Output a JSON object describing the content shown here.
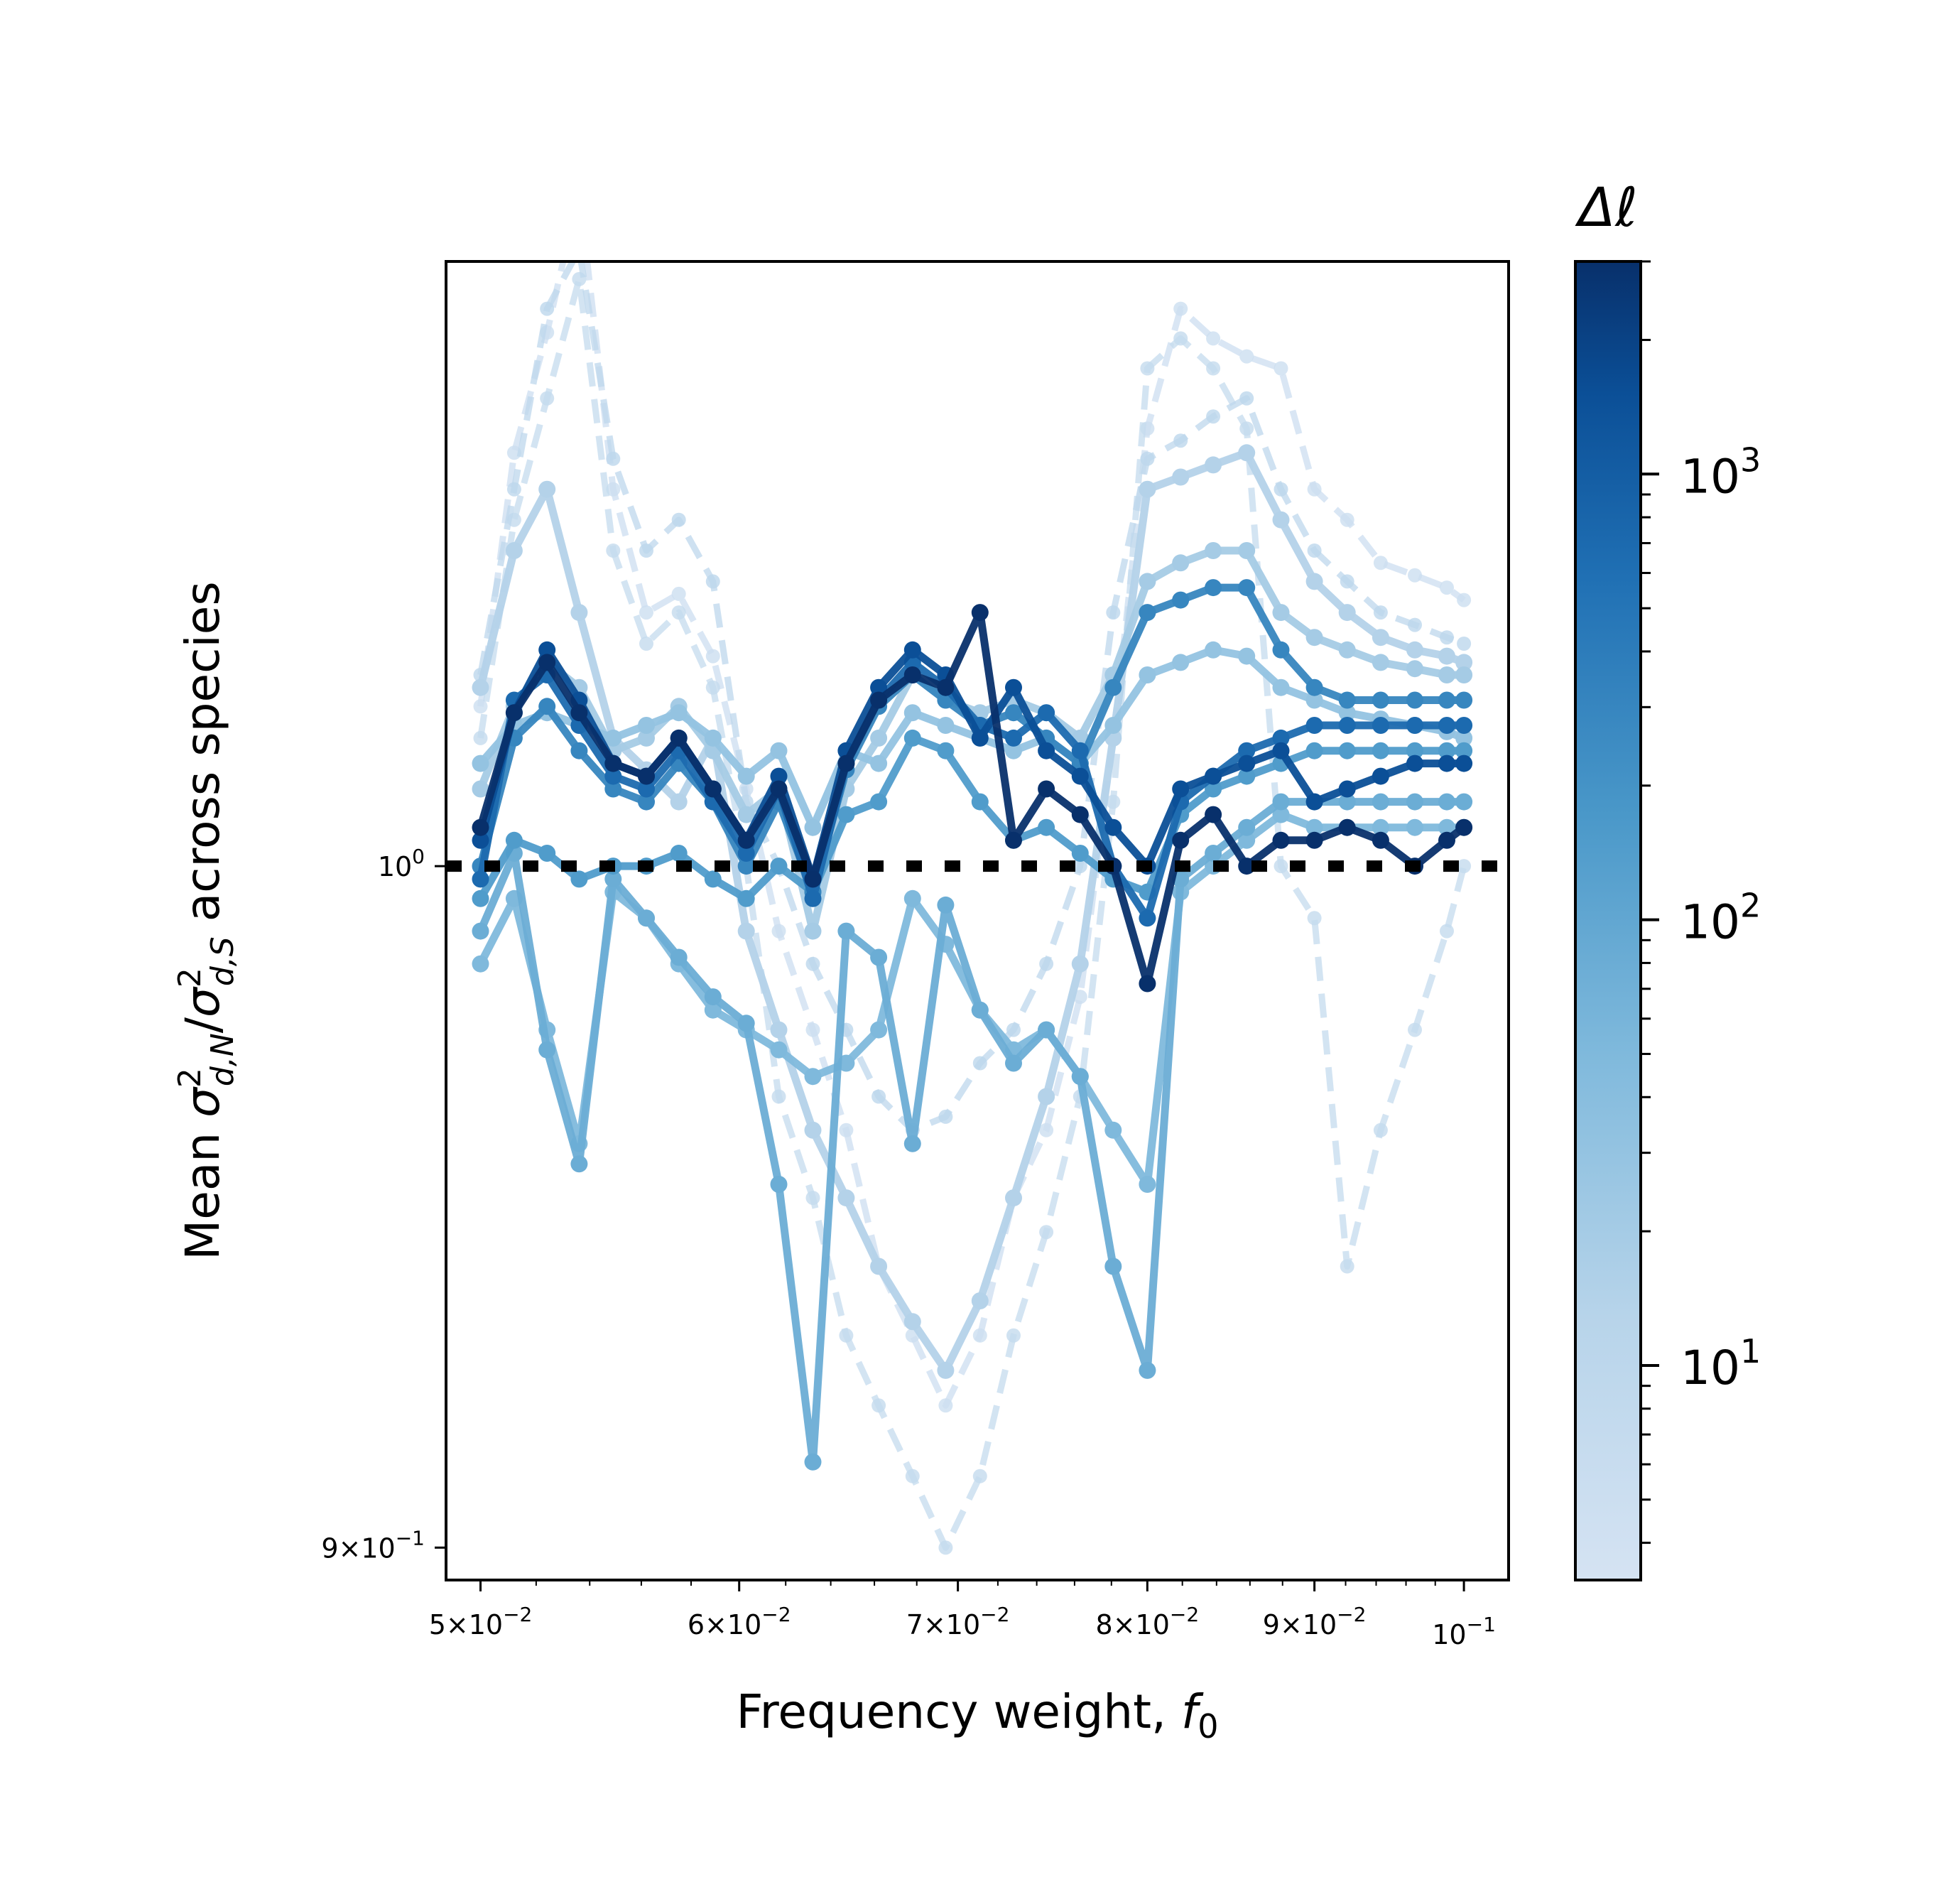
{
  "chart_data": {
    "type": "line",
    "title": "",
    "xlabel": "Frequency weight, ",
    "xlabel_math": "f",
    "xlabel_sub": "0",
    "ylabel_prefix": "Mean ",
    "ylabel_math": "σ",
    "ylabel_sup": "2",
    "ylabel_sub_n": "d,N",
    "ylabel_sub_s": "d,S",
    "ylabel_suffix": " across species",
    "xscale": "log",
    "yscale": "log",
    "xlim": [
      0.0488,
      0.1032
    ],
    "ylim": [
      0.8955,
      1.098
    ],
    "xticks": [
      {
        "value": 0.05,
        "base": "5",
        "exp": "−2"
      },
      {
        "value": 0.06,
        "base": "6",
        "exp": "−2"
      },
      {
        "value": 0.07,
        "base": "7",
        "exp": "−2"
      },
      {
        "value": 0.08,
        "base": "8",
        "exp": "−2"
      },
      {
        "value": 0.09,
        "base": "9",
        "exp": "−2"
      },
      {
        "value": 0.1,
        "base": "",
        "exp": "−1"
      }
    ],
    "yticks": [
      {
        "value": 1.0,
        "base": "",
        "exp": "0"
      },
      {
        "value": 0.9,
        "base": "9",
        "exp": "−1"
      }
    ],
    "reference_line": {
      "y": 1.0,
      "style": "dotted",
      "color": "#000000"
    },
    "x": [
      0.05,
      0.0512,
      0.0524,
      0.0536,
      0.0549,
      0.0562,
      0.0575,
      0.0589,
      0.0603,
      0.0617,
      0.0632,
      0.0647,
      0.0662,
      0.0678,
      0.0694,
      0.0711,
      0.0728,
      0.0745,
      0.0763,
      0.0781,
      0.08,
      0.0819,
      0.0838,
      0.0858,
      0.0879,
      0.09,
      0.0921,
      0.0943,
      0.0966,
      0.0988,
      0.1
    ],
    "series": [
      {
        "dl": 5,
        "y": [
          1.025,
          1.066,
          1.086,
          1.11,
          1.06,
          1.04,
          1.043,
          1.033,
          1.012,
          0.99,
          0.975,
          0.96,
          0.94,
          0.93,
          0.92,
          0.93,
          0.95,
          0.96,
          0.98,
          1.02,
          1.07,
          1.09,
          1.085,
          1.082,
          1.08,
          1.06,
          1.055,
          1.048,
          1.046,
          1.044,
          1.042
        ]
      },
      {
        "dl": 7,
        "y": [
          1.02,
          1.055,
          1.075,
          1.095,
          1.05,
          1.035,
          1.04,
          1.028,
          1.0,
          0.965,
          0.95,
          0.93,
          0.92,
          0.91,
          0.9,
          0.91,
          0.93,
          0.945,
          0.965,
          1.01,
          1.08,
          1.085,
          1.08,
          1.07,
          1.0,
          0.992,
          0.94,
          0.96,
          0.975,
          0.99,
          1.0
        ]
      },
      {
        "dl": 10,
        "y": [
          1.03,
          1.06,
          1.09,
          1.1,
          1.065,
          1.05,
          1.055,
          1.045,
          1.01,
          1.0,
          0.985,
          0.975,
          0.965,
          0.96,
          0.962,
          0.97,
          0.975,
          0.985,
          1.0,
          1.04,
          1.065,
          1.068,
          1.072,
          1.075,
          1.06,
          1.05,
          1.045,
          1.04,
          1.038,
          1.036,
          1.035
        ]
      },
      {
        "dl": 14,
        "y": [
          1.028,
          1.05,
          1.06,
          1.04,
          1.02,
          1.015,
          1.01,
          1.02,
          0.99,
          0.975,
          0.96,
          0.95,
          0.94,
          0.932,
          0.925,
          0.935,
          0.95,
          0.965,
          0.985,
          1.02,
          1.06,
          1.062,
          1.064,
          1.066,
          1.055,
          1.045,
          1.04,
          1.036,
          1.034,
          1.033,
          1.032
        ]
      },
      {
        "dl": 20,
        "y": [
          1.012,
          1.025,
          1.032,
          1.028,
          1.018,
          1.02,
          1.025,
          1.018,
          1.008,
          1.012,
          0.99,
          1.012,
          1.02,
          1.03,
          1.026,
          1.024,
          1.026,
          1.024,
          1.02,
          1.03,
          1.045,
          1.048,
          1.05,
          1.05,
          1.04,
          1.036,
          1.034,
          1.032,
          1.031,
          1.03,
          1.03
        ]
      },
      {
        "dl": 30,
        "y": [
          1.016,
          1.022,
          1.024,
          1.022,
          1.02,
          1.022,
          1.024,
          1.02,
          1.014,
          1.018,
          1.006,
          1.018,
          1.016,
          1.024,
          1.022,
          1.02,
          1.018,
          1.02,
          1.016,
          1.022,
          1.03,
          1.032,
          1.034,
          1.033,
          1.028,
          1.026,
          1.024,
          1.023,
          1.022,
          1.021,
          1.02
        ]
      },
      {
        "dl": 50,
        "y": [
          0.985,
          0.995,
          0.975,
          0.958,
          0.996,
          0.992,
          0.985,
          0.978,
          0.975,
          0.972,
          0.968,
          0.97,
          0.975,
          0.995,
          0.988,
          0.978,
          0.972,
          0.975,
          0.968,
          0.96,
          0.952,
          0.996,
          1.0,
          1.004,
          1.008,
          1.006,
          1.006,
          1.006,
          1.006,
          1.006,
          1.006
        ]
      },
      {
        "dl": 80,
        "y": [
          0.99,
          1.002,
          0.972,
          0.955,
          0.998,
          0.992,
          0.986,
          0.98,
          0.976,
          0.952,
          0.912,
          0.99,
          0.986,
          0.958,
          0.994,
          0.978,
          0.97,
          0.975,
          0.968,
          0.94,
          0.925,
          0.998,
          1.002,
          1.006,
          1.01,
          1.01,
          1.01,
          1.01,
          1.01,
          1.01,
          1.01
        ]
      },
      {
        "dl": 150,
        "y": [
          0.995,
          1.004,
          1.002,
          0.998,
          1.0,
          1.0,
          1.002,
          0.998,
          0.995,
          1.0,
          0.996,
          1.008,
          1.01,
          1.02,
          1.018,
          1.01,
          1.004,
          1.006,
          1.002,
          0.998,
          0.996,
          1.008,
          1.012,
          1.014,
          1.016,
          1.018,
          1.018,
          1.018,
          1.018,
          1.018,
          1.018
        ]
      },
      {
        "dl": 300,
        "y": [
          1.0,
          1.02,
          1.025,
          1.018,
          1.012,
          1.01,
          1.016,
          1.01,
          1.0,
          1.01,
          0.996,
          1.015,
          1.025,
          1.03,
          1.026,
          1.022,
          1.024,
          1.02,
          1.016,
          1.028,
          1.04,
          1.042,
          1.044,
          1.044,
          1.034,
          1.028,
          1.026,
          1.026,
          1.026,
          1.026,
          1.026
        ]
      },
      {
        "dl": 700,
        "y": [
          0.998,
          1.026,
          1.03,
          1.022,
          1.014,
          1.012,
          1.018,
          1.01,
          1.002,
          1.012,
          0.995,
          1.016,
          1.026,
          1.032,
          1.028,
          1.022,
          1.02,
          1.024,
          1.018,
          1.0,
          0.992,
          1.01,
          1.014,
          1.018,
          1.02,
          1.022,
          1.022,
          1.022,
          1.022,
          1.022,
          1.022
        ]
      },
      {
        "dl": 1500,
        "y": [
          1.004,
          1.024,
          1.034,
          1.026,
          1.016,
          1.014,
          1.02,
          1.012,
          1.004,
          1.014,
          0.998,
          1.018,
          1.028,
          1.034,
          1.03,
          1.02,
          1.028,
          1.018,
          1.014,
          1.006,
          1.0,
          1.012,
          1.014,
          1.016,
          1.018,
          1.01,
          1.012,
          1.014,
          1.016,
          1.016,
          1.016
        ]
      },
      {
        "dl": 3000,
        "y": [
          1.006,
          1.024,
          1.032,
          1.024,
          1.016,
          1.014,
          1.02,
          1.012,
          1.004,
          1.012,
          0.998,
          1.016,
          1.026,
          1.03,
          1.028,
          1.04,
          1.004,
          1.012,
          1.008,
          1.0,
          0.982,
          1.004,
          1.008,
          1.0,
          1.004,
          1.004,
          1.006,
          1.004,
          1.0,
          1.004,
          1.006
        ]
      }
    ],
    "colorbar": {
      "label_math": "Δℓ",
      "scale": "log",
      "min": 3.3,
      "max": 3000,
      "cmap": [
        "#c6dbef",
        "#9ecae1",
        "#6baed6",
        "#4292c6",
        "#2171b5",
        "#08519c",
        "#08306b"
      ],
      "ticks": [
        {
          "value": 10,
          "base": "10",
          "exp": "1"
        },
        {
          "value": 100,
          "base": "10",
          "exp": "2"
        },
        {
          "value": 1000,
          "base": "10",
          "exp": "3"
        }
      ]
    }
  }
}
